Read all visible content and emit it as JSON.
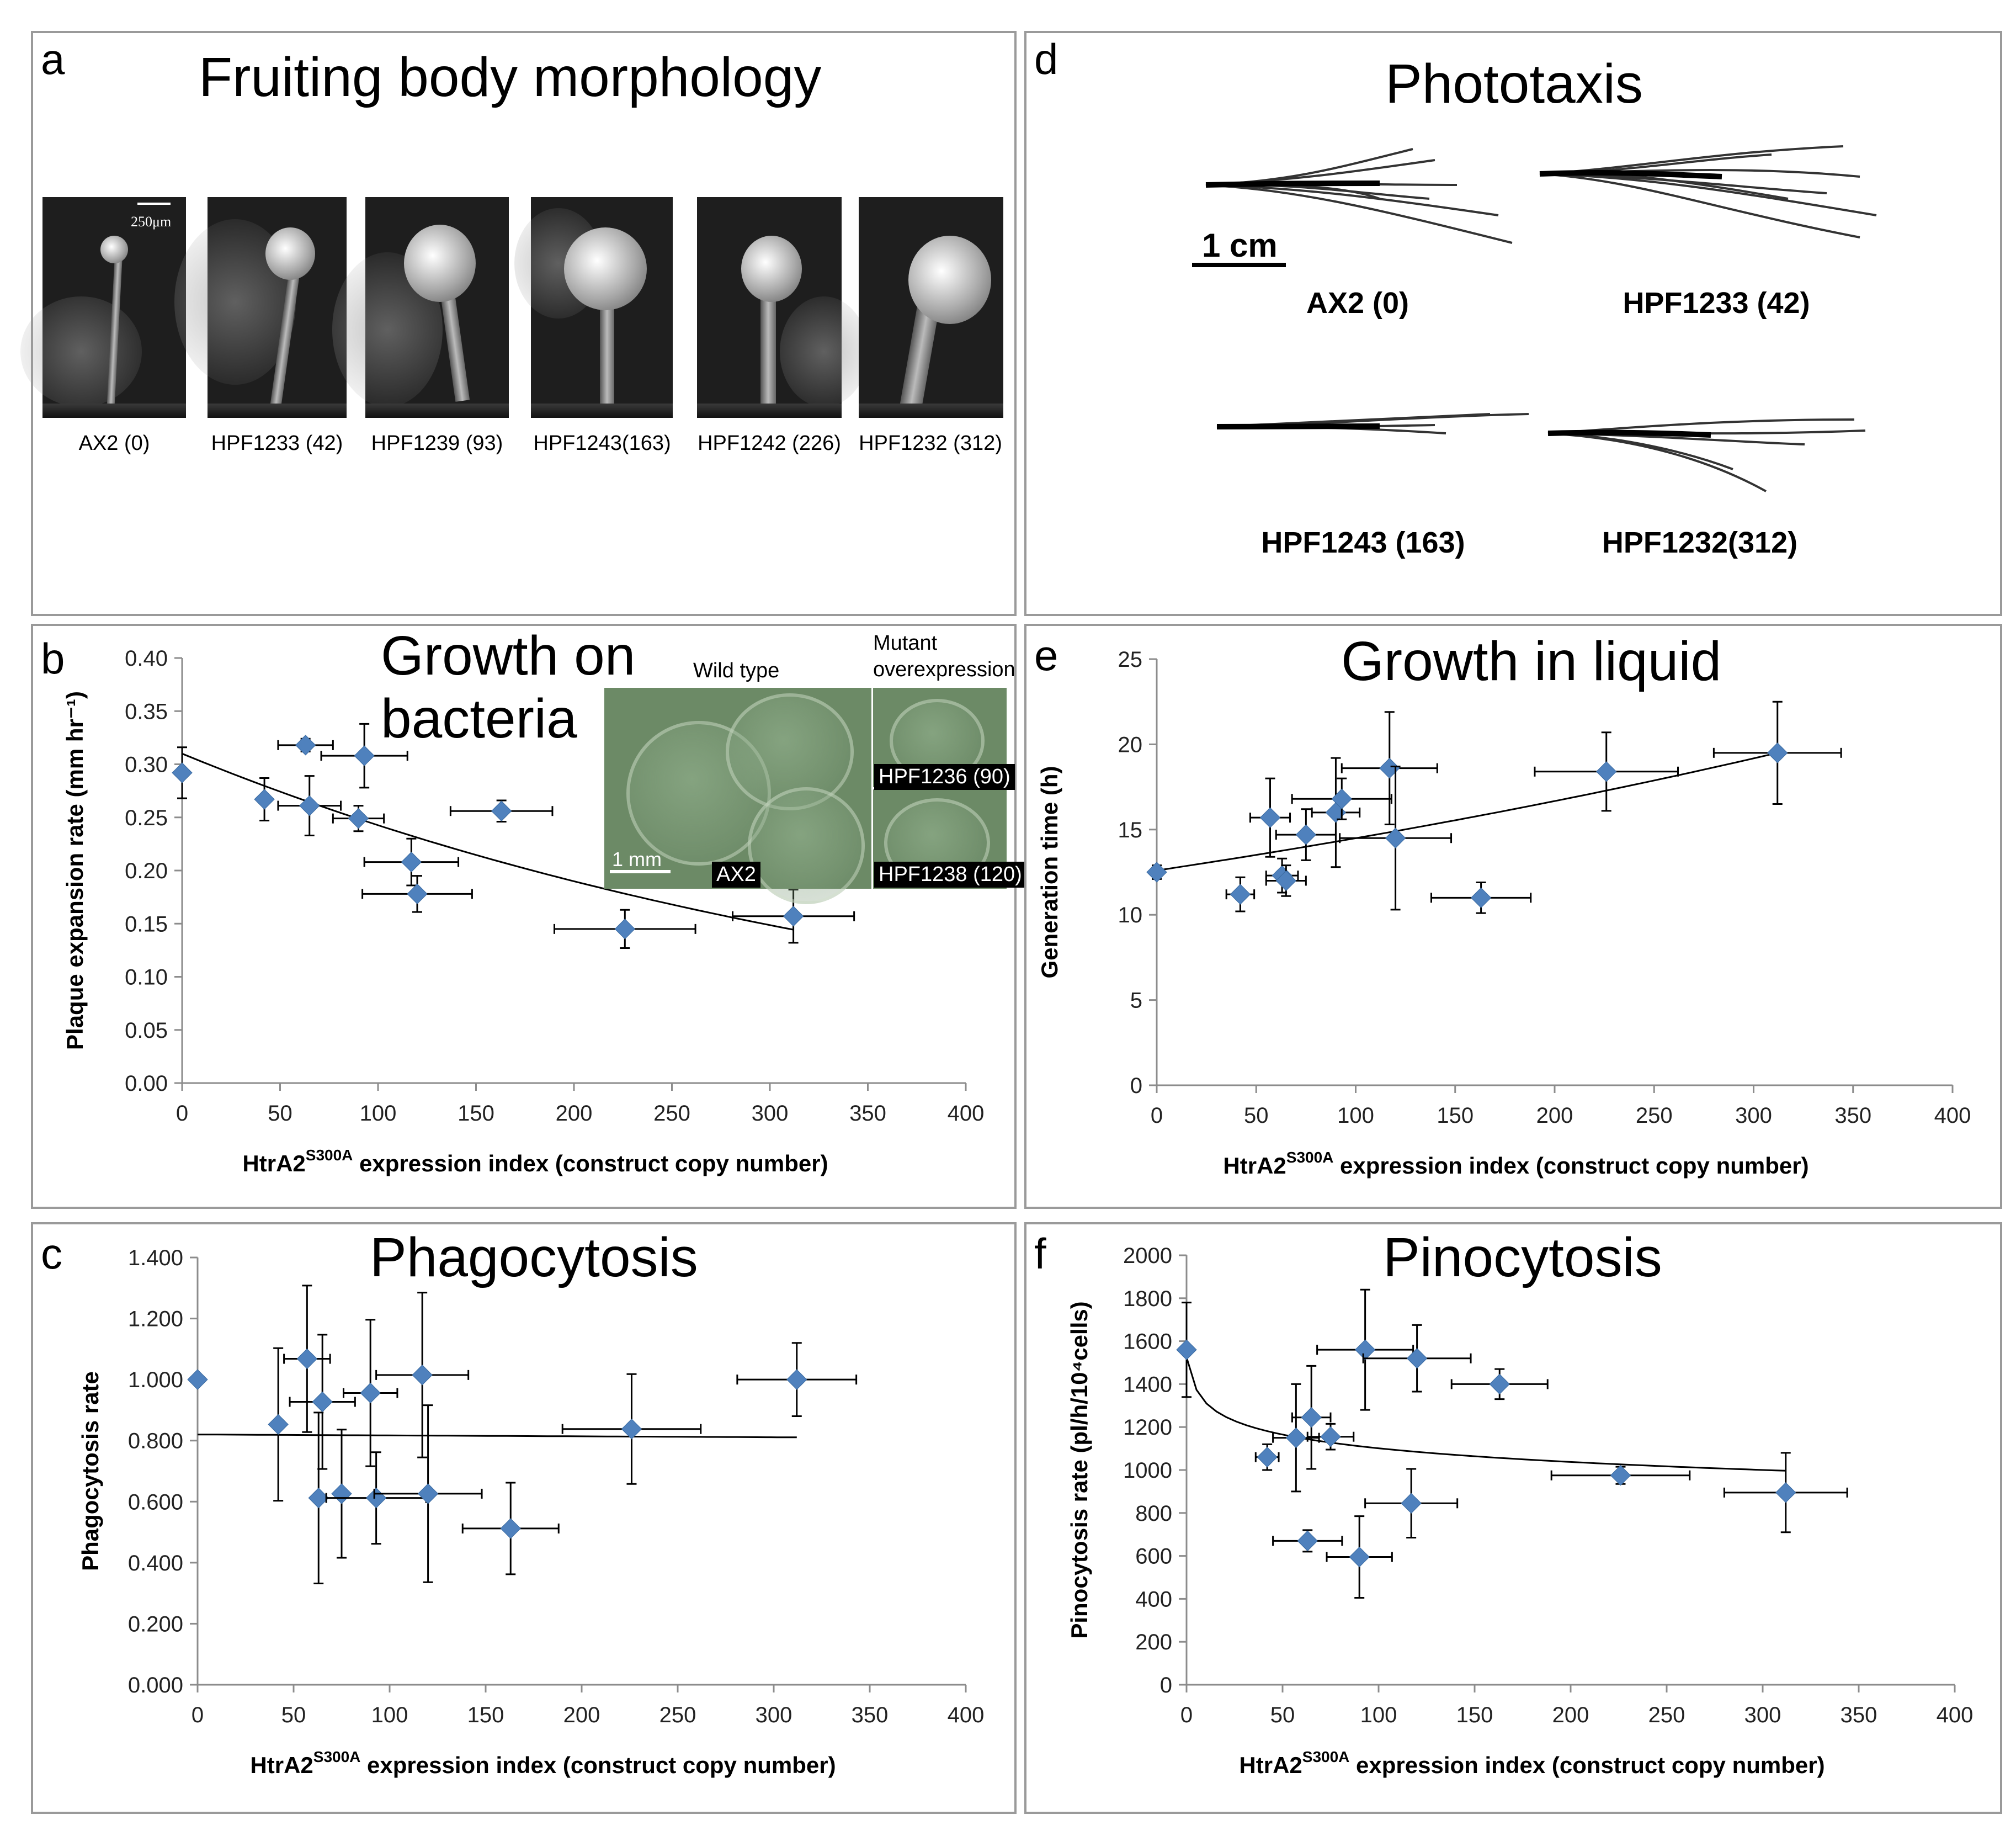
{
  "panels": {
    "a": {
      "letter": "a",
      "title": "Fruiting body morphology",
      "scale_bar": "250μm",
      "photos": [
        {
          "label": "AX2 (0)"
        },
        {
          "label": "HPF1233 (42)"
        },
        {
          "label": "HPF1239 (93)"
        },
        {
          "label": "HPF1243(163)"
        },
        {
          "label": "HPF1242 (226)"
        },
        {
          "label": "HPF1232 (312)"
        }
      ]
    },
    "d": {
      "letter": "d",
      "title": "Phototaxis",
      "scale_bar": "1 cm",
      "strains": [
        "AX2 (0)",
        "HPF1233 (42)",
        "HPF1243 (163)",
        "HPF1232(312)"
      ]
    },
    "b": {
      "letter": "b",
      "title_line1": "Growth on",
      "title_line2": "bacteria",
      "inset": {
        "wild_type_label": "Wild type",
        "mutant_label_line1": "Mutant",
        "mutant_label_line2": "overexpression",
        "tag_ax2": "AX2",
        "tag_1236": "HPF1236 (90)",
        "tag_1238": "HPF1238 (120)",
        "scale": "1 mm"
      }
    },
    "e": {
      "letter": "e",
      "title": "Growth in liquid"
    },
    "c": {
      "letter": "c",
      "title": "Phagocytosis"
    },
    "f": {
      "letter": "f",
      "title": "Pinocytosis"
    }
  },
  "xlabel_main": "HtrA2",
  "xlabel_sup": "S300A",
  "xlabel_rest": " expression index (construct copy number)",
  "colors": {
    "marker": "#4f81bd",
    "axis": "#8c8c8c",
    "trend": "#000000",
    "error": "#000000"
  },
  "chart_data": [
    {
      "id": "b",
      "type": "scatter",
      "title": "Growth on bacteria",
      "ylabel": "Plaque expansion rate (mm hr⁻¹)",
      "xlim": [
        0,
        400
      ],
      "ylim": [
        0,
        0.4
      ],
      "xticks": [
        "0",
        "50",
        "100",
        "150",
        "200",
        "250",
        "300",
        "350",
        "400"
      ],
      "yticks": [
        "0.00",
        "0.05",
        "0.10",
        "0.15",
        "0.20",
        "0.25",
        "0.30",
        "0.35",
        "0.40"
      ],
      "points": [
        {
          "x": 0,
          "y": 0.292,
          "xerr": 0,
          "yerr": 0.024
        },
        {
          "x": 42,
          "y": 0.267,
          "xerr": 0,
          "yerr": 0.02
        },
        {
          "x": 63,
          "y": 0.318,
          "xerr": 14,
          "yerr": 0.006
        },
        {
          "x": 65,
          "y": 0.261,
          "xerr": 16,
          "yerr": 0.028
        },
        {
          "x": 90,
          "y": 0.249,
          "xerr": 13,
          "yerr": 0.012
        },
        {
          "x": 93,
          "y": 0.308,
          "xerr": 22,
          "yerr": 0.03
        },
        {
          "x": 117,
          "y": 0.208,
          "xerr": 24,
          "yerr": 0.022
        },
        {
          "x": 120,
          "y": 0.178,
          "xerr": 28,
          "yerr": 0.017
        },
        {
          "x": 163,
          "y": 0.256,
          "xerr": 26,
          "yerr": 0.01
        },
        {
          "x": 226,
          "y": 0.145,
          "xerr": 36,
          "yerr": 0.018
        },
        {
          "x": 312,
          "y": 0.157,
          "xerr": 31,
          "yerr": 0.025
        }
      ],
      "trend": {
        "kind": "exp",
        "a": 0.31,
        "b": -0.00245,
        "x0": 0,
        "x1": 312
      }
    },
    {
      "id": "e",
      "type": "scatter",
      "title": "Growth in liquid",
      "ylabel": "Generation time (h)",
      "xlim": [
        0,
        400
      ],
      "ylim": [
        0,
        25
      ],
      "xticks": [
        "0",
        "50",
        "100",
        "150",
        "200",
        "250",
        "300",
        "350",
        "400"
      ],
      "yticks": [
        "0",
        "5",
        "10",
        "15",
        "20",
        "25"
      ],
      "points": [
        {
          "x": 0,
          "y": 12.5,
          "xerr": 0,
          "yerr": 0.4
        },
        {
          "x": 42,
          "y": 11.2,
          "xerr": 7,
          "yerr": 1.0
        },
        {
          "x": 57,
          "y": 15.7,
          "xerr": 10,
          "yerr": 2.3
        },
        {
          "x": 63,
          "y": 12.3,
          "xerr": 8,
          "yerr": 1.0
        },
        {
          "x": 65,
          "y": 12.0,
          "xerr": 10,
          "yerr": 0.9
        },
        {
          "x": 75,
          "y": 14.7,
          "xerr": 15,
          "yerr": 1.5
        },
        {
          "x": 90,
          "y": 16.0,
          "xerr": 12,
          "yerr": 3.2
        },
        {
          "x": 93,
          "y": 16.8,
          "xerr": 25,
          "yerr": 1.2
        },
        {
          "x": 117,
          "y": 18.6,
          "xerr": 24,
          "yerr": 3.3
        },
        {
          "x": 120,
          "y": 14.5,
          "xerr": 28,
          "yerr": 4.2
        },
        {
          "x": 163,
          "y": 11.0,
          "xerr": 25,
          "yerr": 0.9
        },
        {
          "x": 226,
          "y": 18.4,
          "xerr": 36,
          "yerr": 2.3
        },
        {
          "x": 312,
          "y": 19.5,
          "xerr": 32,
          "yerr": 3.0
        }
      ],
      "trend": {
        "kind": "exp",
        "a": 12.6,
        "b": 0.0014,
        "x0": 0,
        "x1": 312
      }
    },
    {
      "id": "c",
      "type": "scatter",
      "title": "Phagocytosis",
      "ylabel": "Phagocytosis rate",
      "xlim": [
        0,
        400
      ],
      "ylim": [
        0,
        1.4
      ],
      "xticks": [
        "0",
        "50",
        "100",
        "150",
        "200",
        "250",
        "300",
        "350",
        "400"
      ],
      "yticks": [
        "0.000",
        "0.200",
        "0.400",
        "0.600",
        "0.800",
        "1.000",
        "1.200",
        "1.400"
      ],
      "points": [
        {
          "x": 0,
          "y": 1.0,
          "xerr": 0,
          "yerr": 0
        },
        {
          "x": 42,
          "y": 0.853,
          "xerr": 0,
          "yerr": 0.25
        },
        {
          "x": 57,
          "y": 1.068,
          "xerr": 12,
          "yerr": 0.24
        },
        {
          "x": 63,
          "y": 0.612,
          "xerr": 0,
          "yerr": 0.28
        },
        {
          "x": 65,
          "y": 0.927,
          "xerr": 17,
          "yerr": 0.22
        },
        {
          "x": 75,
          "y": 0.626,
          "xerr": 0,
          "yerr": 0.21
        },
        {
          "x": 90,
          "y": 0.956,
          "xerr": 14,
          "yerr": 0.24
        },
        {
          "x": 93,
          "y": 0.612,
          "xerr": 26,
          "yerr": 0.15
        },
        {
          "x": 117,
          "y": 1.015,
          "xerr": 24,
          "yerr": 0.27
        },
        {
          "x": 120,
          "y": 0.626,
          "xerr": 28,
          "yerr": 0.29
        },
        {
          "x": 163,
          "y": 0.512,
          "xerr": 25,
          "yerr": 0.15
        },
        {
          "x": 226,
          "y": 0.838,
          "xerr": 36,
          "yerr": 0.18
        },
        {
          "x": 312,
          "y": 1.0,
          "xerr": 31,
          "yerr": 0.12
        }
      ],
      "trend": {
        "kind": "linear",
        "a": 0.82,
        "b": -3e-05,
        "x0": 0,
        "x1": 312
      }
    },
    {
      "id": "f",
      "type": "scatter",
      "title": "Pinocytosis",
      "ylabel": "Pinocytosis rate (pl/h/10⁴cells)",
      "xlim": [
        0,
        400
      ],
      "ylim": [
        0,
        2000
      ],
      "xticks": [
        "0",
        "50",
        "100",
        "150",
        "200",
        "250",
        "300",
        "350",
        "400"
      ],
      "yticks": [
        "0",
        "200",
        "400",
        "600",
        "800",
        "1000",
        "1200",
        "1400",
        "1600",
        "1800",
        "2000"
      ],
      "points": [
        {
          "x": 0,
          "y": 1560,
          "xerr": 0,
          "yerr": 220
        },
        {
          "x": 42,
          "y": 1060,
          "xerr": 6,
          "yerr": 60
        },
        {
          "x": 57,
          "y": 1150,
          "xerr": 12,
          "yerr": 250
        },
        {
          "x": 63,
          "y": 670,
          "xerr": 18,
          "yerr": 50
        },
        {
          "x": 65,
          "y": 1245,
          "xerr": 10,
          "yerr": 240
        },
        {
          "x": 75,
          "y": 1155,
          "xerr": 12,
          "yerr": 60
        },
        {
          "x": 90,
          "y": 595,
          "xerr": 17,
          "yerr": 190
        },
        {
          "x": 93,
          "y": 1560,
          "xerr": 25,
          "yerr": 280
        },
        {
          "x": 117,
          "y": 845,
          "xerr": 24,
          "yerr": 160
        },
        {
          "x": 120,
          "y": 1520,
          "xerr": 28,
          "yerr": 155
        },
        {
          "x": 163,
          "y": 1400,
          "xerr": 25,
          "yerr": 70
        },
        {
          "x": 226,
          "y": 975,
          "xerr": 36,
          "yerr": 40
        },
        {
          "x": 312,
          "y": 895,
          "xerr": 32,
          "yerr": 185
        }
      ],
      "trend": {
        "kind": "log",
        "a": 1525,
        "b": -92,
        "x0": 0,
        "x1": 312
      }
    }
  ]
}
